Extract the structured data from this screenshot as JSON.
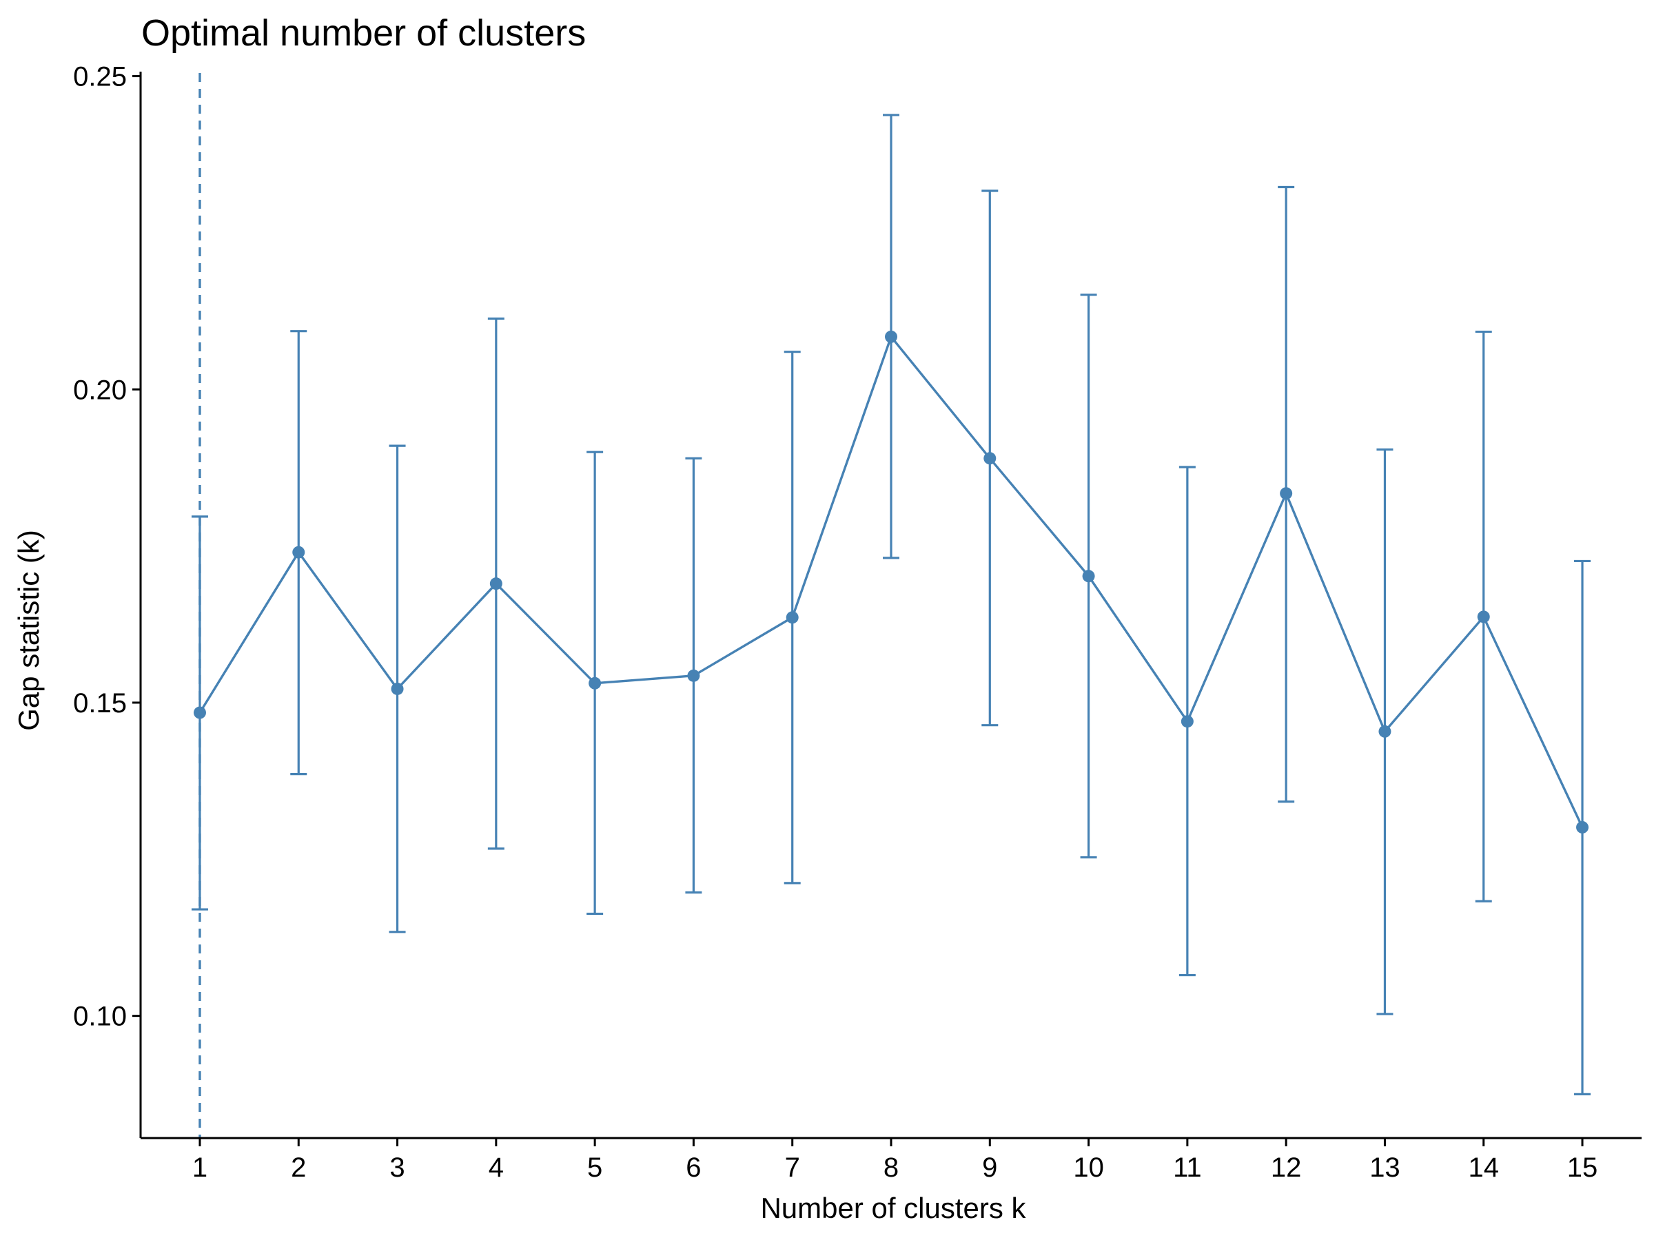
{
  "chart_data": {
    "type": "line",
    "title": "Optimal number of clusters",
    "xlabel": "Number of clusters k",
    "ylabel": "Gap statistic (k)",
    "x": [
      1,
      2,
      3,
      4,
      5,
      6,
      7,
      8,
      9,
      10,
      11,
      12,
      13,
      14,
      15
    ],
    "x_tick_labels": [
      "1",
      "2",
      "3",
      "4",
      "5",
      "6",
      "7",
      "8",
      "9",
      "10",
      "11",
      "12",
      "13",
      "14",
      "15"
    ],
    "y_ticks": [
      0.1,
      0.15,
      0.2,
      0.25
    ],
    "y_tick_labels": [
      "0.10",
      "0.15",
      "0.20",
      "0.25"
    ],
    "xlim": [
      0.4,
      15.6
    ],
    "ylim": [
      0.0805,
      0.2505
    ],
    "series": [
      {
        "values": [
          0.1484,
          0.174,
          0.1522,
          0.169,
          0.1531,
          0.1543,
          0.1636,
          0.2084,
          0.189,
          0.1702,
          0.147,
          0.1834,
          0.1454,
          0.1637,
          0.1301
        ],
        "error_low": [
          0.117,
          0.1386,
          0.1134,
          0.1267,
          0.1163,
          0.1197,
          0.1212,
          0.1731,
          0.1464,
          0.1253,
          0.1065,
          0.1342,
          0.1003,
          0.1183,
          0.0875
        ],
        "error_high": [
          0.1797,
          0.2093,
          0.191,
          0.2113,
          0.19,
          0.189,
          0.206,
          0.2438,
          0.2317,
          0.2151,
          0.1876,
          0.2323,
          0.1904,
          0.2092,
          0.1726
        ]
      }
    ],
    "optimal_k": 1,
    "grid": false,
    "colors": {
      "series": "#4682B4",
      "axis": "#000000"
    }
  }
}
